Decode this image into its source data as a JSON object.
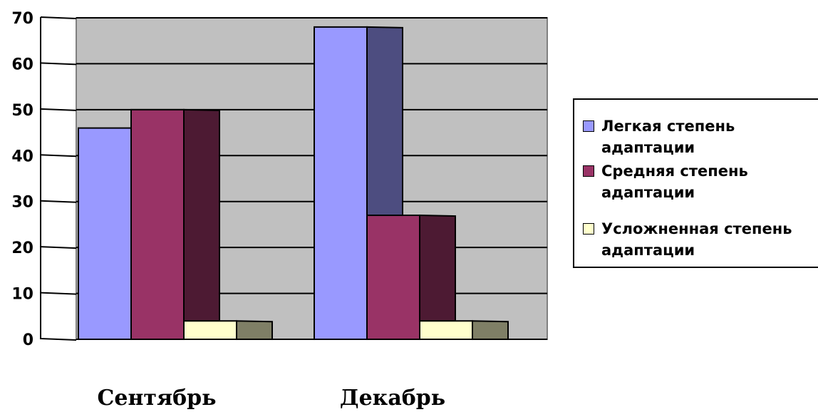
{
  "chart_data": {
    "type": "bar",
    "categories": [
      "Сентябрь",
      "Декабрь"
    ],
    "series": [
      {
        "name": "Легкая степень адаптации",
        "values": [
          46,
          68
        ],
        "color": "#9999FF"
      },
      {
        "name": "Средняя степень адаптации",
        "values": [
          50,
          27
        ],
        "color": "#993366"
      },
      {
        "name": "Усложненная степень адаптации",
        "values": [
          4,
          4
        ],
        "color": "#FFFFCC"
      }
    ],
    "yticks": [
      "0",
      "10",
      "20",
      "30",
      "40",
      "50",
      "60",
      "70"
    ],
    "ylim": [
      0,
      70
    ],
    "grid": true,
    "legend_position": "right",
    "wall_color": "#C0C0C0"
  }
}
